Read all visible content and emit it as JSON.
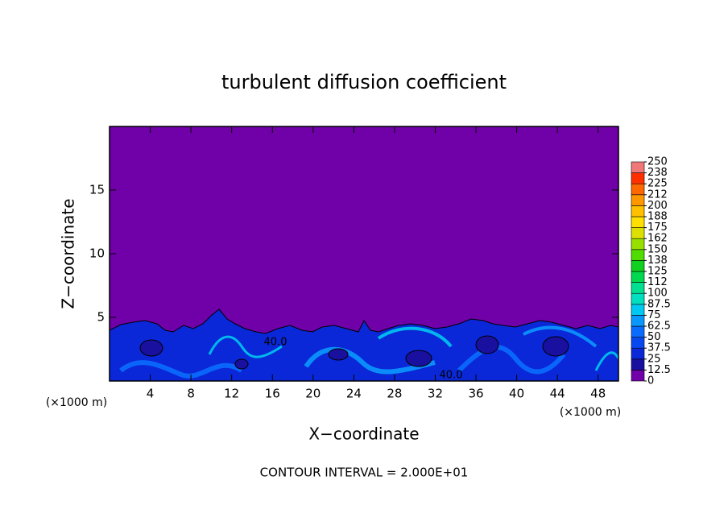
{
  "chart_data": {
    "type": "contour",
    "title": "turbulent diffusion coefficient",
    "x_label": "X−coordinate",
    "y_label": "Z−coordinate",
    "x_unit": "(×1000 m)",
    "xlim": [
      0,
      50
    ],
    "xticks": [
      4,
      8,
      12,
      16,
      20,
      24,
      28,
      32,
      36,
      40,
      44,
      48
    ],
    "ylim": [
      0,
      20
    ],
    "yticks": [
      5,
      10,
      15
    ],
    "colorbar": {
      "ticks": [
        0,
        12.5,
        25,
        37.5,
        50,
        62.5,
        75,
        87.5,
        100,
        {
          "value": 112.5,
          "label": "112"
        },
        125,
        {
          "value": 137.5,
          "label": "138"
        },
        150,
        {
          "value": 162.5,
          "label": "162"
        },
        175,
        {
          "value": 187.5,
          "label": "188"
        },
        200,
        {
          "value": 212.5,
          "label": "212"
        },
        225,
        {
          "value": 237.5,
          "label": "238"
        },
        250
      ],
      "colors": [
        "#7000a8",
        "#1a10a0",
        "#0a28d8",
        "#0848f0",
        "#0a6cff",
        "#0a98ff",
        "#00c8f0",
        "#00e0c0",
        "#00e090",
        "#00d850",
        "#10d020",
        "#50dc00",
        "#98e000",
        "#dce000",
        "#ffe000",
        "#ffc000",
        "#ff9800",
        "#ff6800",
        "#ff3000",
        "#f07878"
      ]
    },
    "contour_labels": [
      {
        "value": 40,
        "label": "40.0"
      },
      {
        "value": 40,
        "label": "40.0"
      }
    ],
    "footnote": "CONTOUR INTERVAL = 2.000E+01"
  }
}
